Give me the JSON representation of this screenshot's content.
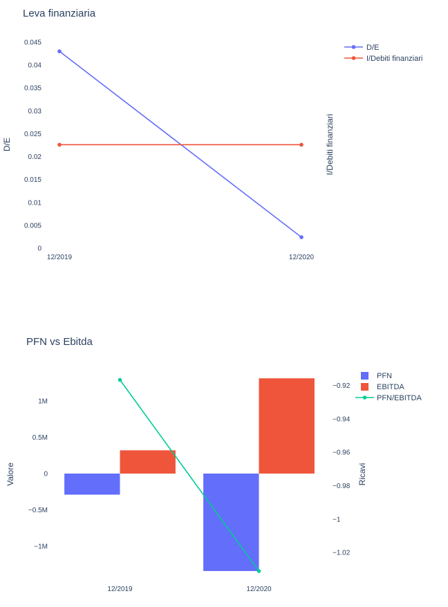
{
  "chart_data": [
    {
      "type": "line",
      "title": "Leva finanziaria",
      "categories": [
        "12/2019",
        "12/2020"
      ],
      "ylabel": "D/E",
      "y2label": "I/Debiti finanziari",
      "ylim": [
        0,
        0.045
      ],
      "yticks": [
        "0",
        "0.005",
        "0.01",
        "0.015",
        "0.02",
        "0.025",
        "0.03",
        "0.035",
        "0.04",
        "0.045"
      ],
      "legend_position": "top-right",
      "series": [
        {
          "name": "D/E",
          "values": [
            0.043,
            0.0024
          ],
          "color": "#636efa",
          "axis": "y"
        },
        {
          "name": "I/Debiti finanziari",
          "values": [
            0.0226,
            0.0226
          ],
          "color": "#ef553b",
          "axis": "y"
        }
      ]
    },
    {
      "type": "bar",
      "title": "PFN vs Ebitda",
      "categories": [
        "12/2019",
        "12/2020"
      ],
      "ylabel": "Valore",
      "y2label": "Ricavi",
      "ylim": [
        -1350000,
        1350000
      ],
      "yticks": [
        {
          "label": "1M",
          "value": 1000000
        },
        {
          "label": "0.5M",
          "value": 500000
        },
        {
          "label": "0",
          "value": 0
        },
        {
          "label": "−0.5M",
          "value": -500000
        },
        {
          "label": "−1M",
          "value": -1000000
        }
      ],
      "y2lim": [
        -1.0316,
        -0.9139
      ],
      "y2ticks": [
        {
          "label": "−0.92",
          "value": -0.92
        },
        {
          "label": "−0.94",
          "value": -0.94
        },
        {
          "label": "−0.96",
          "value": -0.96
        },
        {
          "label": "−0.98",
          "value": -0.98
        },
        {
          "label": "−1",
          "value": -1
        },
        {
          "label": "−1.02",
          "value": -1.02
        }
      ],
      "legend_position": "top-right",
      "series": [
        {
          "name": "PFN",
          "kind": "bar",
          "values": [
            -290000,
            -1340000
          ],
          "color": "#636efa",
          "axis": "y"
        },
        {
          "name": "EBITDA",
          "kind": "bar",
          "values": [
            320000,
            1310000
          ],
          "color": "#ef553b",
          "axis": "y"
        },
        {
          "name": "PFN/EBITDA",
          "kind": "line",
          "values": [
            -0.9166,
            -1.0312
          ],
          "color": "#00cc96",
          "axis": "y2"
        }
      ]
    }
  ]
}
